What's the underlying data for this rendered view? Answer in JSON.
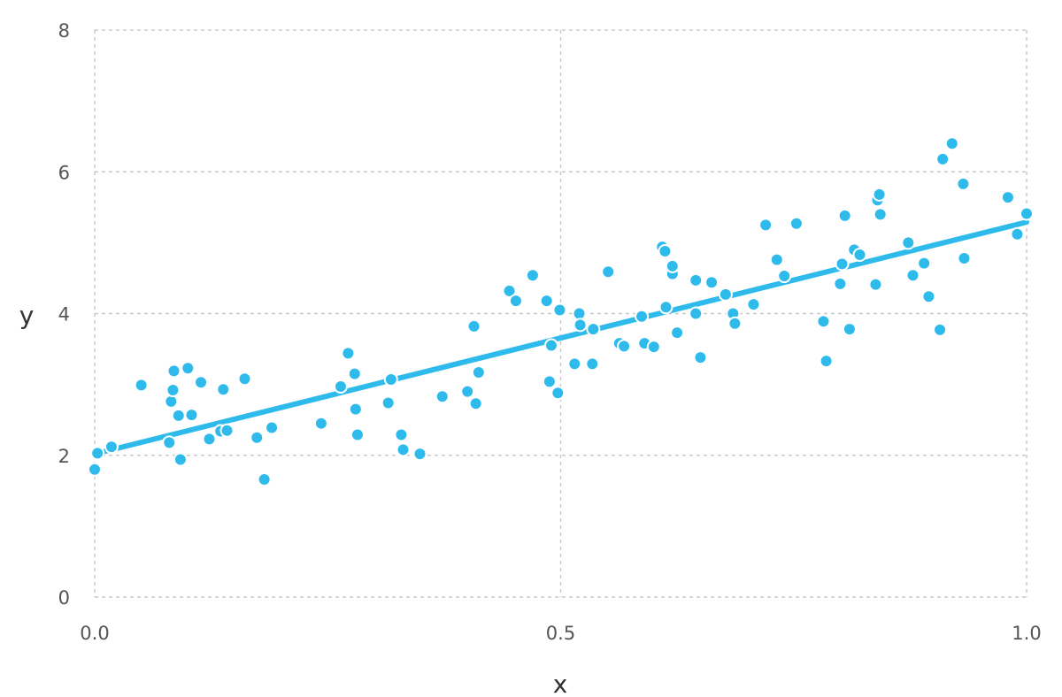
{
  "chart_data": {
    "type": "scatter",
    "title": "",
    "xlabel": "x",
    "ylabel": "y",
    "xlim": [
      0,
      1
    ],
    "ylim": [
      0,
      8
    ],
    "x_ticks": [
      0,
      0.5,
      1
    ],
    "x_tick_labels": [
      "0.0",
      "0.5",
      "1.0"
    ],
    "y_ticks": [
      0,
      2,
      4,
      6,
      8
    ],
    "y_tick_labels": [
      "0",
      "2",
      "4",
      "6",
      "8"
    ],
    "grid": true,
    "legend": "none",
    "colors": {
      "points": "#2EBBEC",
      "line": "#2EBBEC"
    },
    "series": [
      {
        "type": "scatter",
        "points": [
          [
            0.0,
            1.8
          ],
          [
            0.003,
            2.03
          ],
          [
            0.018,
            2.12
          ],
          [
            0.05,
            2.99
          ],
          [
            0.08,
            2.18
          ],
          [
            0.082,
            2.76
          ],
          [
            0.084,
            2.92
          ],
          [
            0.085,
            3.19
          ],
          [
            0.09,
            2.56
          ],
          [
            0.092,
            1.94
          ],
          [
            0.1,
            3.23
          ],
          [
            0.104,
            2.57
          ],
          [
            0.114,
            3.03
          ],
          [
            0.123,
            2.23
          ],
          [
            0.135,
            2.34
          ],
          [
            0.138,
            2.93
          ],
          [
            0.142,
            2.35
          ],
          [
            0.161,
            3.08
          ],
          [
            0.174,
            2.25
          ],
          [
            0.182,
            1.66
          ],
          [
            0.19,
            2.39
          ],
          [
            0.243,
            2.45
          ],
          [
            0.264,
            2.97
          ],
          [
            0.272,
            3.44
          ],
          [
            0.279,
            3.15
          ],
          [
            0.28,
            2.65
          ],
          [
            0.282,
            2.29
          ],
          [
            0.315,
            2.74
          ],
          [
            0.318,
            3.07
          ],
          [
            0.329,
            2.29
          ],
          [
            0.331,
            2.08
          ],
          [
            0.349,
            2.02
          ],
          [
            0.373,
            2.83
          ],
          [
            0.4,
            2.9
          ],
          [
            0.407,
            3.82
          ],
          [
            0.409,
            2.73
          ],
          [
            0.412,
            3.17
          ],
          [
            0.445,
            4.32
          ],
          [
            0.452,
            4.18
          ],
          [
            0.47,
            4.54
          ],
          [
            0.485,
            4.18
          ],
          [
            0.488,
            3.04
          ],
          [
            0.49,
            3.55
          ],
          [
            0.497,
            2.88
          ],
          [
            0.499,
            4.05
          ],
          [
            0.515,
            3.29
          ],
          [
            0.52,
            4.0
          ],
          [
            0.521,
            3.84
          ],
          [
            0.534,
            3.29
          ],
          [
            0.535,
            3.78
          ],
          [
            0.551,
            4.59
          ],
          [
            0.563,
            3.58
          ],
          [
            0.568,
            3.54
          ],
          [
            0.587,
            3.96
          ],
          [
            0.59,
            3.58
          ],
          [
            0.6,
            3.53
          ],
          [
            0.609,
            4.94
          ],
          [
            0.612,
            4.88
          ],
          [
            0.613,
            4.09
          ],
          [
            0.62,
            4.56
          ],
          [
            0.62,
            4.67
          ],
          [
            0.625,
            3.73
          ],
          [
            0.645,
            4.47
          ],
          [
            0.645,
            4.0
          ],
          [
            0.65,
            3.38
          ],
          [
            0.662,
            4.44
          ],
          [
            0.677,
            4.27
          ],
          [
            0.685,
            4.0
          ],
          [
            0.687,
            3.86
          ],
          [
            0.707,
            4.13
          ],
          [
            0.72,
            5.25
          ],
          [
            0.732,
            4.76
          ],
          [
            0.74,
            4.53
          ],
          [
            0.753,
            5.27
          ],
          [
            0.782,
            3.89
          ],
          [
            0.785,
            3.33
          ],
          [
            0.8,
            4.42
          ],
          [
            0.802,
            4.7
          ],
          [
            0.805,
            5.38
          ],
          [
            0.81,
            3.78
          ],
          [
            0.815,
            4.9
          ],
          [
            0.821,
            4.83
          ],
          [
            0.838,
            4.41
          ],
          [
            0.84,
            5.6
          ],
          [
            0.842,
            5.68
          ],
          [
            0.843,
            5.4
          ],
          [
            0.873,
            5.0
          ],
          [
            0.878,
            4.54
          ],
          [
            0.89,
            4.71
          ],
          [
            0.895,
            4.24
          ],
          [
            0.907,
            3.77
          ],
          [
            0.91,
            6.18
          ],
          [
            0.92,
            6.4
          ],
          [
            0.932,
            5.83
          ],
          [
            0.933,
            4.78
          ],
          [
            0.98,
            5.64
          ],
          [
            0.99,
            5.12
          ],
          [
            1.0,
            5.41
          ]
        ]
      },
      {
        "type": "line",
        "points": [
          [
            0.0,
            2.02
          ],
          [
            1.0,
            5.29
          ]
        ]
      }
    ]
  }
}
